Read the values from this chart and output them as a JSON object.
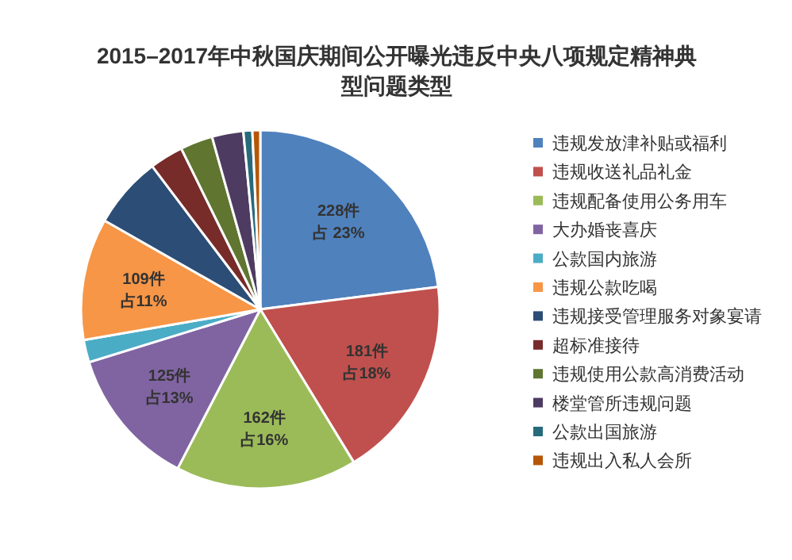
{
  "chart_data": {
    "type": "pie",
    "title": "2015–2017年中秋国庆期间公开曝光违反中央八项规定精神典型问题类型",
    "categories": [
      "违规发放津补贴或福利",
      "违规收送礼品礼金",
      "违规配备使用公务用车",
      "大办婚丧喜庆",
      "公款国内旅游",
      "违规公款吃喝",
      "违规接受管理服务对象宴请",
      "超标准接待",
      "违规使用公款高消费活动",
      "楼堂管所违规问题",
      "公款出国旅游",
      "违规出入私人会所"
    ],
    "values": [
      228,
      181,
      162,
      125,
      20,
      109,
      64,
      30,
      29,
      28,
      8,
      7
    ],
    "colors": [
      "#4f81bd",
      "#c0504d",
      "#9bbb59",
      "#8064a2",
      "#4bacc6",
      "#f79646",
      "#2c4d75",
      "#772c2a",
      "#5f7530",
      "#4d3b62",
      "#276a7c",
      "#b65708"
    ],
    "value_labels": [
      "228件占 23%",
      "181件占18%",
      "162件占16%",
      "125件占13%",
      null,
      "109件占11%",
      null,
      null,
      null,
      null,
      null,
      null
    ],
    "legend": "right"
  }
}
